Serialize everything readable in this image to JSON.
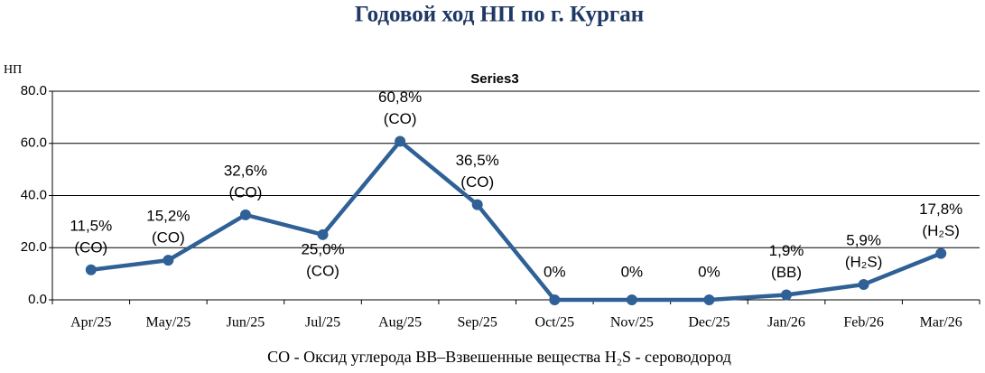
{
  "chart_data": {
    "type": "line",
    "title": "Годовой ход НП по г. Курган",
    "y_axis_label": "НП",
    "categories": [
      "Apr/25",
      "May/25",
      "Jun/25",
      "Jul/25",
      "Aug/25",
      "Sep/25",
      "Oct/25",
      "Nov/25",
      "Dec/25",
      "Jan/26",
      "Feb/26",
      "Mar/26"
    ],
    "series": [
      {
        "name": "Series3",
        "color": "#2f6196",
        "values": [
          11.5,
          15.2,
          32.6,
          25.0,
          60.8,
          36.5,
          0,
          0,
          0,
          1.9,
          5.9,
          17.8
        ],
        "value_labels": [
          "11,5%",
          "15,2%",
          "32,6%",
          "25,0%",
          "60,8%",
          "36,5%",
          "0%",
          "0%",
          "0%",
          "1,9%",
          "5,9%",
          "17,8%"
        ],
        "pollutants": [
          "(CO)",
          "(CO)",
          "(CO)",
          "(CO)",
          "(CO)",
          "(CO)",
          null,
          null,
          null,
          "(ВВ)",
          "(H₂S)",
          "(H₂S)"
        ]
      }
    ],
    "ylim": [
      0,
      80
    ],
    "yticks": [
      {
        "value": 0,
        "label": "0.0"
      },
      {
        "value": 20,
        "label": "20.0"
      },
      {
        "value": 40,
        "label": "40.0"
      },
      {
        "value": 60,
        "label": "60.0"
      },
      {
        "value": 80,
        "label": "80.0"
      }
    ],
    "grid": true,
    "footnote": "CO - Оксид углерода  ВВ–Взвешенные вещества H₂S - сероводород"
  }
}
